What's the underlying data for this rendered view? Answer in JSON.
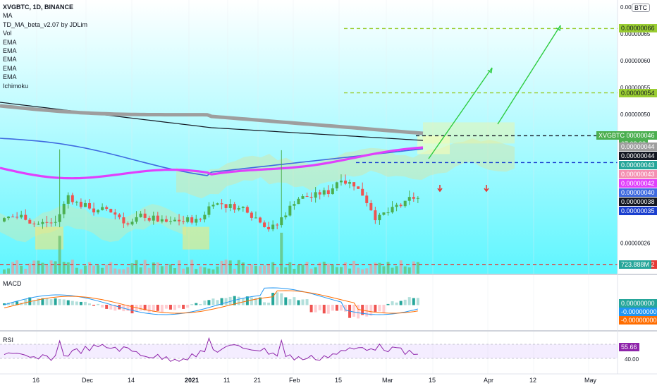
{
  "header": {
    "symbol_line": "XVGBTC, 1D, BINANCE",
    "indicators": [
      "MA",
      "TD_MA_beta_v2.07 by JDLim",
      "Vol",
      "EMA",
      "EMA",
      "EMA",
      "EMA",
      "EMA",
      "Ichimoku"
    ],
    "currency_badge": "BTC"
  },
  "panes": {
    "macd_label": "MACD",
    "rsi_label": "RSI"
  },
  "colors": {
    "up": "#4caf50",
    "down": "#ef5350",
    "ma_magenta": "#e040fb",
    "ma_blue": "#3f6ae0",
    "ma_gray": "#9e9e9e",
    "ma_black": "#131722",
    "cloud": "#cfe8b0",
    "arrow": "#2ecc40",
    "green_level": "#9acd32",
    "red_level": "#e53935",
    "blue_level": "#1a3fcf",
    "bg_top": "#ffffff",
    "bg_bottom": "#5ff6ff"
  },
  "chart_data": [
    {
      "type": "candlestick",
      "title": "XVGBTC, 1D, BINANCE",
      "x_ticks": [
        "16",
        "Dec",
        "14",
        "2021",
        "11",
        "21",
        "Feb",
        "15",
        "Mar",
        "15",
        "Apr",
        "12",
        "May"
      ],
      "y_ticks": [
        "0.00000070",
        "0.00000065",
        "0.00000060",
        "0.00000055",
        "0.00000050",
        "0.00000026"
      ],
      "ylim": [
        2e-07,
        7e-07
      ],
      "price_tags": [
        {
          "label": "0.00000066",
          "value": 6.6e-07,
          "color": "#9acd32"
        },
        {
          "label": "0.00000054",
          "value": 5.4e-07,
          "color": "#9acd32"
        },
        {
          "label": "0.00000046",
          "value": 4.6e-07,
          "color": "#4caf50"
        },
        {
          "label": "07:08:38",
          "value": 4.54e-07,
          "color": "#4caf50"
        },
        {
          "label": "0.00000044",
          "value": 4.4e-07,
          "color": "#9e9e9e"
        },
        {
          "label": "0.00000044",
          "value": 4.35e-07,
          "color": "#131722"
        },
        {
          "label": "0.00000043",
          "value": 4.3e-07,
          "color": "#26a69a"
        },
        {
          "label": "0.00000043",
          "value": 4.25e-07,
          "color": "#f48fb1"
        },
        {
          "label": "0.00000042",
          "value": 4.2e-07,
          "color": "#e040fb"
        },
        {
          "label": "0.00000040",
          "value": 4e-07,
          "color": "#3f6ae0"
        },
        {
          "label": "0.00000038",
          "value": 3.8e-07,
          "color": "#131722"
        },
        {
          "label": "0.00000035",
          "value": 3.5e-07,
          "color": "#1a3fcf"
        },
        {
          "label": "0.00000022",
          "value": 2.2e-07,
          "color": "#e53935"
        }
      ],
      "symbol_tag": "XVGBTC",
      "horizontal_levels": [
        {
          "value": 6.6e-07,
          "color": "#9acd32"
        },
        {
          "value": 5.4e-07,
          "color": "#9acd32"
        },
        {
          "value": 4.6e-07,
          "color": "#131722"
        },
        {
          "value": 4.1e-07,
          "color": "#1a3fcf"
        },
        {
          "value": 2.2e-07,
          "color": "#e53935"
        }
      ],
      "volume_tag": "723.888M"
    },
    {
      "type": "macd",
      "title": "MACD",
      "tags": [
        "0.00000000",
        "-0.00000000",
        "-0.00000000"
      ],
      "tag_colors": [
        "#26a69a",
        "#2196f3",
        "#ff6d00"
      ]
    },
    {
      "type": "rsi",
      "title": "RSI",
      "y_ticks": [
        "40.00"
      ],
      "rsi_value": "55.66",
      "rsi_color": "#8e24aa"
    }
  ]
}
